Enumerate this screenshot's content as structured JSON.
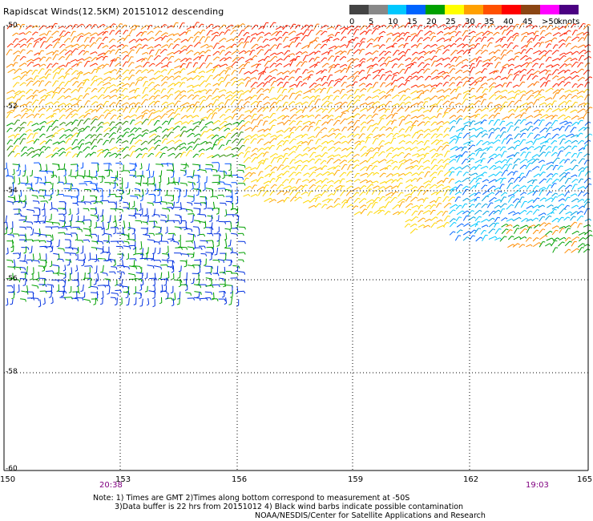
{
  "title": "Rapidscat Winds(12.5KM) 20151012 descending",
  "legend": {
    "labels": [
      "0",
      "5",
      "10",
      "15",
      "20",
      "25",
      "30",
      "35",
      "40",
      "45",
      ">50"
    ],
    "unit": "knots",
    "colors": [
      "#444444",
      "#888888",
      "#00c8ff",
      "#0064ff",
      "#00a000",
      "#ffff00",
      "#ffa000",
      "#ff5000",
      "#ff0000",
      "#8b4513",
      "#ff00ff",
      "#4b0082"
    ]
  },
  "axes": {
    "lat_labels": [
      "-50",
      "-52",
      "-54",
      "-56",
      "-58",
      "-60"
    ],
    "lon_labels": [
      "150",
      "153",
      "156",
      "159",
      "162",
      "165"
    ],
    "time_labels": [
      "20:38",
      "19:03"
    ]
  },
  "notes": [
    "Note: 1) Times are GMT 2)Times along bottom correspond to measurement at -50S",
    "3)Data buffer is 22 hrs from 20151012 4) Black wind barbs indicate possible contamination",
    "NOAA/NESDIS/Center for Satellite Applications and Research"
  ]
}
